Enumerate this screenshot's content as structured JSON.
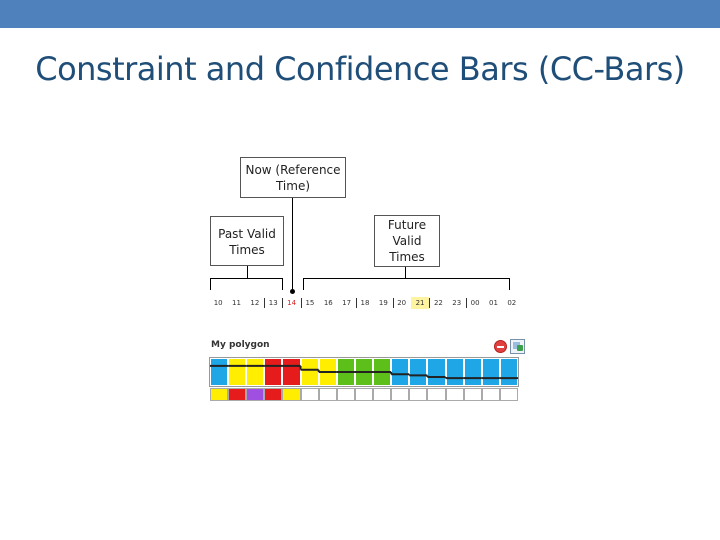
{
  "title": "Constraint and Confidence Bars (CC-Bars)",
  "labels": {
    "now": "Now (Reference\nTime)",
    "past": "Past Valid\nTimes",
    "future": "Future\nValid\nTimes"
  },
  "hours": [
    "10",
    "11",
    "12",
    "13",
    "14",
    "15",
    "16",
    "17",
    "18",
    "19",
    "20",
    "21",
    "22",
    "23",
    "00",
    "01",
    "02"
  ],
  "now_hour": "14",
  "selected_hour": "21",
  "panel": {
    "name": "My polygon",
    "delete_icon": "delete-icon",
    "edit_icon": "edit-icon"
  },
  "colors": {
    "topbar": "#4f81bd",
    "title": "#1f4e79",
    "blue": "#1ea6e6",
    "yellow": "#ffee00",
    "red": "#e61c1c",
    "green": "#5cbf1a",
    "purple": "#a050e0",
    "white": "#ffffff"
  },
  "constraint_bar": [
    "blue",
    "yellow",
    "yellow",
    "red",
    "red",
    "yellow",
    "yellow",
    "green",
    "green",
    "green",
    "blue",
    "blue",
    "blue",
    "blue",
    "blue",
    "blue",
    "blue"
  ],
  "confidence_levels": [
    0.72,
    0.72,
    0.72,
    0.72,
    0.72,
    0.58,
    0.5,
    0.5,
    0.5,
    0.5,
    0.42,
    0.38,
    0.32,
    0.28,
    0.28,
    0.28,
    0.28
  ],
  "confidence_bar": [
    "yellow",
    "red",
    "purple",
    "red",
    "yellow",
    "white",
    "white",
    "white",
    "white",
    "white",
    "white",
    "white",
    "white",
    "white",
    "white",
    "white",
    "white"
  ]
}
